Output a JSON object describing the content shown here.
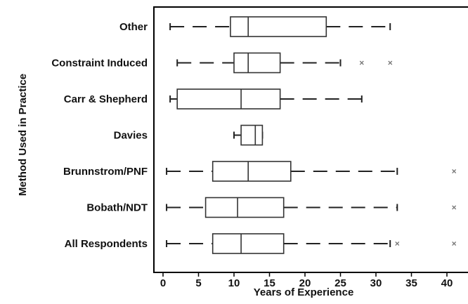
{
  "chart_data": {
    "type": "boxplot",
    "xlabel": "Years of Experience",
    "ylabel": "Method Used in Practice",
    "xlim": [
      -1,
      41
    ],
    "xticks": [
      "0",
      "5",
      "10",
      "15",
      "20",
      "25",
      "30",
      "35",
      "40"
    ],
    "colors": {
      "box_stroke": "#333333",
      "whisker": "#222222",
      "outlier": "#777777"
    },
    "categories": [
      "Other",
      "Constraint Induced",
      "Carr & Shepherd",
      "Davies",
      "Brunnstrom/PNF",
      "Bobath/NDT",
      "All Respondents"
    ],
    "boxes": [
      {
        "label": "Other",
        "min": 1,
        "q1": 9.5,
        "median": 12,
        "q3": 23,
        "max": 32,
        "outliers": []
      },
      {
        "label": "Constraint Induced",
        "min": 2,
        "q1": 10,
        "median": 12,
        "q3": 16.5,
        "max": 25,
        "outliers": [
          28,
          32
        ]
      },
      {
        "label": "Carr & Shepherd",
        "min": 1,
        "q1": 2,
        "median": 11,
        "q3": 16.5,
        "max": 28,
        "outliers": []
      },
      {
        "label": "Davies",
        "min": 10,
        "q1": 11,
        "median": 13,
        "q3": 14,
        "max": 14,
        "outliers": []
      },
      {
        "label": "Brunnstrom/PNF",
        "min": 0.5,
        "q1": 7,
        "median": 12,
        "q3": 18,
        "max": 33,
        "outliers": [
          41
        ]
      },
      {
        "label": "Bobath/NDT",
        "min": 0.5,
        "q1": 6,
        "median": 10.5,
        "q3": 17,
        "max": 33,
        "outliers": [
          41
        ]
      },
      {
        "label": "All Respondents",
        "min": 0.5,
        "q1": 7,
        "median": 11,
        "q3": 17,
        "max": 32,
        "outliers": [
          33,
          41
        ]
      }
    ]
  }
}
